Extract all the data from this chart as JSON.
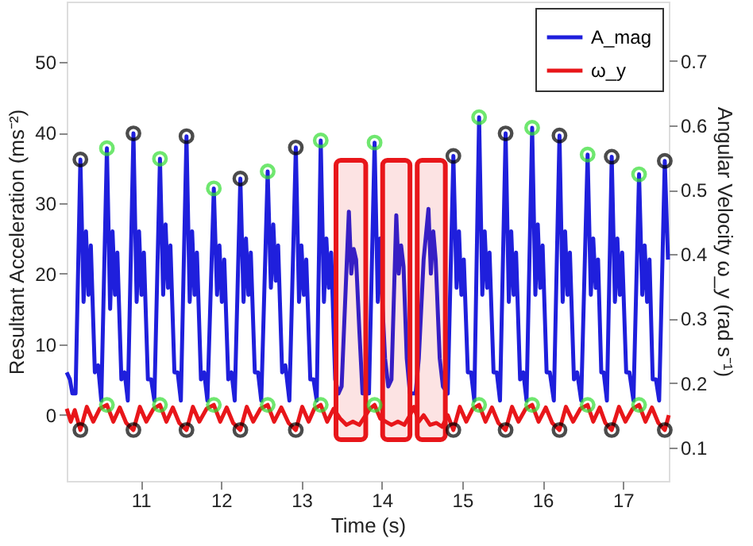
{
  "chart_data": {
    "type": "line",
    "xlabel": "Time (s)",
    "ylabel": "Resultant Acceleration (ms⁻²)",
    "y2label": "Angular Velocity ω_y (rad s⁻¹)",
    "xlim": [
      10.08,
      17.57
    ],
    "xticks": [
      11,
      12,
      13,
      14,
      15,
      16,
      17
    ],
    "ylim": [
      -9.4,
      58.6
    ],
    "yticks": [
      0,
      10,
      20,
      30,
      40,
      50
    ],
    "y2lim": [
      0.048,
      0.792
    ],
    "y2ticks": [
      0.1,
      0.2,
      0.3,
      0.4,
      0.5,
      0.6,
      0.7
    ],
    "legend": "top right",
    "grid": false,
    "line_style": "solid",
    "bands": [
      {
        "axis": "x",
        "from": 13.43,
        "to": 13.8,
        "color": "#e8161a"
      },
      {
        "axis": "x",
        "from": 14.01,
        "to": 14.35,
        "color": "#e8161a"
      },
      {
        "axis": "x",
        "from": 14.44,
        "to": 14.79,
        "color": "#e8161a"
      }
    ],
    "series": [
      {
        "name": "A_mag",
        "type": "line",
        "color": "#1f1fdc",
        "axis": "y",
        "x": [
          10.08,
          10.12,
          10.15,
          10.19,
          10.25,
          10.29,
          10.32,
          10.35,
          10.38,
          10.43,
          10.47,
          10.51,
          10.58,
          10.62,
          10.65,
          10.68,
          10.71,
          10.76,
          10.8,
          10.84,
          10.91,
          10.95,
          10.98,
          11.01,
          11.04,
          11.09,
          11.13,
          11.17,
          11.24,
          11.28,
          11.31,
          11.34,
          11.37,
          11.42,
          11.46,
          11.5,
          11.57,
          11.61,
          11.64,
          11.67,
          11.7,
          11.75,
          11.79,
          11.83,
          11.91,
          11.95,
          11.98,
          12.01,
          12.04,
          12.09,
          12.13,
          12.17,
          12.24,
          12.28,
          12.31,
          12.34,
          12.37,
          12.42,
          12.46,
          12.5,
          12.58,
          12.62,
          12.65,
          12.68,
          12.71,
          12.76,
          12.8,
          12.85,
          12.93,
          12.97,
          13.0,
          13.03,
          13.06,
          13.11,
          13.15,
          13.19,
          13.24,
          13.28,
          13.31,
          13.34,
          13.37,
          13.42,
          13.46,
          13.5,
          13.59,
          13.62,
          13.65,
          13.68,
          13.72,
          13.76,
          13.84,
          13.91,
          13.95,
          13.98,
          14.01,
          14.04,
          14.08,
          14.12,
          14.18,
          14.21,
          14.24,
          14.27,
          14.31,
          14.35,
          14.42,
          14.46,
          14.52,
          14.58,
          14.61,
          14.64,
          14.67,
          14.72,
          14.76,
          14.82,
          14.89,
          14.93,
          14.96,
          14.99,
          15.02,
          15.07,
          15.11,
          15.15,
          15.21,
          15.25,
          15.28,
          15.31,
          15.34,
          15.39,
          15.43,
          15.47,
          15.54,
          15.58,
          15.61,
          15.64,
          15.67,
          15.72,
          15.76,
          15.8,
          15.87,
          15.91,
          15.94,
          15.97,
          16.0,
          16.05,
          16.09,
          16.14,
          16.21,
          16.25,
          16.28,
          16.31,
          16.34,
          16.39,
          16.43,
          16.48,
          16.56,
          16.6,
          16.63,
          16.66,
          16.69,
          16.73,
          16.76,
          16.8,
          16.86,
          16.9,
          16.93,
          16.96,
          16.99,
          17.04,
          17.08,
          17.13,
          17.2,
          17.24,
          17.27,
          17.3,
          17.33,
          17.37,
          17.41,
          17.45,
          17.52,
          17.56
        ],
        "values": [
          6,
          5,
          3,
          3,
          36.2,
          16,
          26,
          17,
          24,
          6,
          7,
          2,
          37.8,
          15,
          26,
          17,
          23,
          5,
          6,
          2,
          39.9,
          16,
          26,
          17,
          23,
          5,
          5,
          2,
          36.3,
          17,
          27,
          18,
          24,
          6,
          6,
          2,
          39.5,
          16,
          26,
          17,
          23,
          5,
          6,
          2,
          32.1,
          17,
          24,
          16,
          22,
          5,
          6,
          2,
          33.5,
          16,
          25,
          17,
          23,
          6,
          6,
          2,
          34.5,
          18,
          27,
          19,
          24,
          6,
          7,
          2,
          37.9,
          16,
          24,
          17,
          22,
          5,
          5,
          2,
          38.9,
          16,
          25,
          18,
          23,
          5,
          3,
          4,
          28.8,
          20,
          23.5,
          22,
          12,
          3,
          3,
          38.6,
          16,
          25,
          15,
          8,
          4,
          5,
          28.3,
          20,
          24,
          21,
          8,
          3,
          3,
          8,
          22,
          29.2,
          20,
          26,
          22,
          8,
          4,
          3,
          36.7,
          18,
          26,
          17,
          22,
          6,
          6,
          2,
          42.2,
          17,
          26,
          18,
          23,
          6,
          6,
          2,
          39.9,
          16,
          26,
          17,
          23,
          5,
          6,
          2,
          40.7,
          17,
          27,
          18,
          24,
          6,
          6,
          2,
          39.6,
          16,
          26,
          17,
          23,
          5,
          6,
          2,
          36.9,
          17,
          25,
          18,
          22,
          6,
          6,
          2,
          36.6,
          16,
          25,
          17,
          23,
          6,
          6,
          2,
          34.1,
          17,
          24,
          16,
          22,
          5,
          5,
          2,
          36.0,
          22
        ]
      },
      {
        "name": "ω_y",
        "type": "line",
        "color": "#e8161a",
        "axis": "y2",
        "x": [
          10.08,
          10.13,
          10.18,
          10.25,
          10.33,
          10.41,
          10.49,
          10.58,
          10.66,
          10.74,
          10.82,
          10.91,
          10.99,
          11.07,
          11.16,
          11.24,
          11.32,
          11.4,
          11.48,
          11.57,
          11.65,
          11.73,
          11.82,
          11.91,
          11.99,
          12.07,
          12.15,
          12.24,
          12.32,
          12.4,
          12.49,
          12.58,
          12.66,
          12.75,
          12.84,
          12.93,
          13.01,
          13.09,
          13.16,
          13.24,
          13.32,
          13.4,
          13.48,
          13.56,
          13.64,
          13.72,
          13.8,
          13.85,
          13.91,
          13.98,
          14.05,
          14.12,
          14.2,
          14.28,
          14.35,
          14.4,
          14.46,
          14.52,
          14.6,
          14.68,
          14.75,
          14.82,
          14.89,
          14.97,
          15.05,
          15.13,
          15.21,
          15.29,
          15.37,
          15.45,
          15.54,
          15.62,
          15.7,
          15.79,
          15.87,
          15.95,
          16.04,
          16.12,
          16.21,
          16.29,
          16.38,
          16.47,
          16.56,
          16.63,
          16.71,
          16.78,
          16.86,
          16.95,
          17.03,
          17.12,
          17.2,
          17.28,
          17.36,
          17.44,
          17.52,
          17.57
        ],
        "values": [
          0.16,
          0.14,
          0.158,
          0.127,
          0.163,
          0.14,
          0.16,
          0.166,
          0.14,
          0.162,
          0.138,
          0.127,
          0.163,
          0.14,
          0.16,
          0.166,
          0.14,
          0.162,
          0.138,
          0.127,
          0.163,
          0.14,
          0.16,
          0.166,
          0.14,
          0.162,
          0.138,
          0.127,
          0.163,
          0.14,
          0.16,
          0.166,
          0.14,
          0.162,
          0.138,
          0.127,
          0.163,
          0.14,
          0.16,
          0.166,
          0.14,
          0.16,
          0.145,
          0.135,
          0.14,
          0.135,
          0.15,
          0.16,
          0.166,
          0.145,
          0.14,
          0.135,
          0.14,
          0.135,
          0.15,
          0.163,
          0.14,
          0.15,
          0.135,
          0.138,
          0.132,
          0.15,
          0.127,
          0.163,
          0.14,
          0.16,
          0.166,
          0.14,
          0.162,
          0.138,
          0.127,
          0.163,
          0.14,
          0.16,
          0.166,
          0.14,
          0.162,
          0.138,
          0.127,
          0.163,
          0.14,
          0.16,
          0.166,
          0.14,
          0.162,
          0.138,
          0.127,
          0.163,
          0.14,
          0.16,
          0.166,
          0.14,
          0.162,
          0.138,
          0.127,
          0.15
        ]
      },
      {
        "type": "scatter",
        "marker": "circle",
        "color": "#000000",
        "axis": "y",
        "x": [
          10.25,
          10.91,
          11.57,
          12.24,
          12.93,
          14.89,
          15.54,
          16.21,
          16.86,
          17.52
        ],
        "values": [
          36.2,
          39.9,
          39.5,
          33.5,
          37.9,
          36.7,
          39.9,
          39.6,
          36.6,
          36.0
        ]
      },
      {
        "type": "scatter",
        "marker": "circle",
        "color": "#33dd33",
        "axis": "y",
        "x": [
          10.58,
          11.24,
          11.91,
          12.58,
          13.24,
          13.91,
          15.21,
          15.87,
          16.56,
          17.2
        ],
        "values": [
          37.8,
          36.3,
          32.1,
          34.5,
          38.9,
          38.6,
          42.2,
          40.7,
          36.9,
          34.1
        ]
      },
      {
        "type": "scatter",
        "marker": "circle",
        "color": "#000000",
        "axis": "y2",
        "x": [
          10.25,
          10.91,
          11.57,
          12.24,
          12.93,
          14.89,
          15.54,
          16.21,
          16.86,
          17.52
        ],
        "values": [
          0.127,
          0.127,
          0.127,
          0.127,
          0.127,
          0.127,
          0.127,
          0.127,
          0.127,
          0.127
        ]
      },
      {
        "type": "scatter",
        "marker": "circle",
        "color": "#33dd33",
        "axis": "y2",
        "x": [
          10.58,
          11.24,
          11.91,
          12.58,
          13.24,
          13.91,
          15.21,
          15.87,
          16.56,
          17.2
        ],
        "values": [
          0.166,
          0.166,
          0.166,
          0.166,
          0.166,
          0.166,
          0.166,
          0.166,
          0.166,
          0.166
        ]
      }
    ]
  }
}
